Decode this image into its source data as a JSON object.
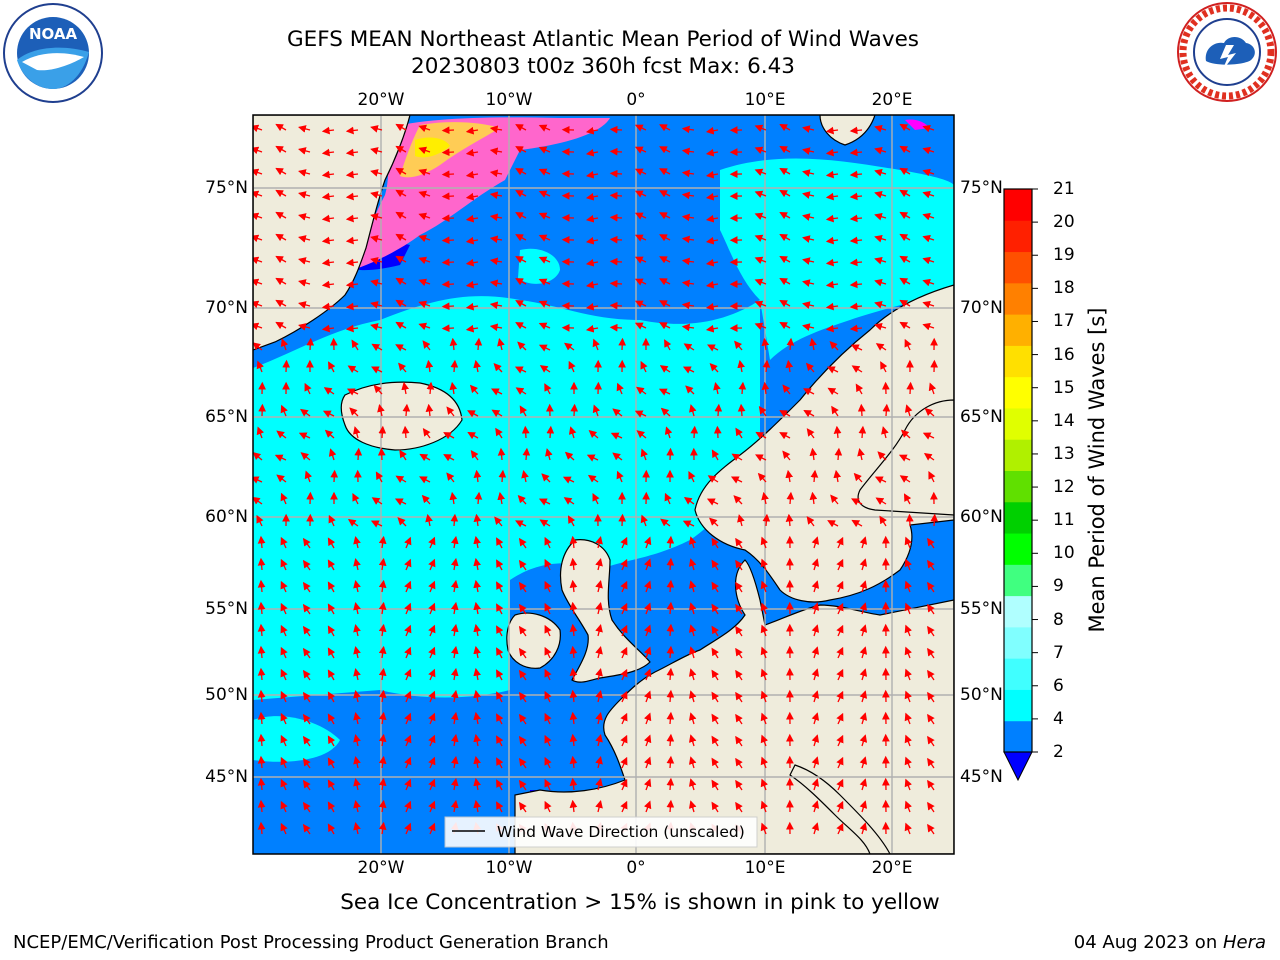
{
  "title": {
    "line1": "GEFS MEAN Northeast Atlantic Mean Period of Wind Waves",
    "line2": "20230803 t00z 360h fcst   Max: 6.43"
  },
  "map": {
    "lon_labels_top": [
      "20°W",
      "10°W",
      "0°",
      "10°E",
      "20°E"
    ],
    "lon_labels_bottom": [
      "20°W",
      "10°W",
      "0°",
      "10°E",
      "20°E"
    ],
    "lat_labels_left": [
      "75°N",
      "70°N",
      "65°N",
      "60°N",
      "55°N",
      "50°N",
      "45°N"
    ],
    "lat_labels_right": [
      "75°N",
      "70°N",
      "65°N",
      "60°N",
      "55°N",
      "50°N",
      "45°N"
    ],
    "legend_text": "Wind Wave Direction (unscaled)",
    "ocean_colors": {
      "low": "#0080ff",
      "mid": "#00ffff",
      "deep": "#0000ff"
    },
    "land_color": "#efecdc",
    "arrow_color": "#ff0000",
    "ice_colors": [
      "#ff00ff",
      "#ff66cc",
      "#ff99aa",
      "#ffcc55",
      "#ffee00"
    ]
  },
  "colorbar": {
    "label": "Mean Period of Wind Waves [s]",
    "ticks": [
      "2",
      "4",
      "6",
      "7",
      "8",
      "9",
      "10",
      "11",
      "12",
      "13",
      "14",
      "15",
      "16",
      "17",
      "18",
      "19",
      "20",
      "21"
    ],
    "colors": [
      "#0080ff",
      "#00ffff",
      "#40ffff",
      "#80ffff",
      "#b0ffff",
      "#40ff80",
      "#00ff00",
      "#00d000",
      "#60e000",
      "#b0f000",
      "#e0ff00",
      "#ffff00",
      "#ffe000",
      "#ffb000",
      "#ff8000",
      "#ff5000",
      "#ff2000",
      "#ff0000"
    ],
    "extend_color": "#0000ff"
  },
  "subtitle": "Sea Ice Concentration > 15% is shown in pink to yellow",
  "footer": {
    "left": "NCEP/EMC/Verification Post Processing Product Generation Branch",
    "right_date": "04 Aug 2023 on ",
    "right_host": "Hera"
  },
  "logos": {
    "noaa": "NOAA",
    "noaa_ring": "NATIONAL OCEANIC AND ATMOSPHERIC ADMINISTRATION · U.S. DEPARTMENT OF COMMERCE",
    "nws_ring": "NATIONAL WEATHER SERVICE"
  }
}
